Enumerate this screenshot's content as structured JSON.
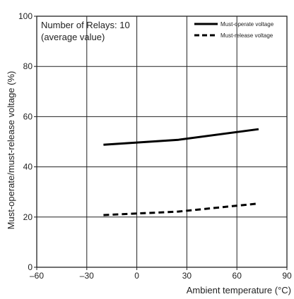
{
  "chart_data": {
    "type": "line",
    "title": "",
    "xlabel": "Ambient temperature (°C)",
    "ylabel": "Must-operate/must-release voltage (%)",
    "xlim": [
      -60,
      90
    ],
    "ylim": [
      0,
      100
    ],
    "x_ticks": [
      -60,
      -30,
      0,
      30,
      60,
      90
    ],
    "y_ticks": [
      0,
      20,
      40,
      60,
      80,
      100
    ],
    "x_tick_labels": [
      "–60",
      "–30",
      "0",
      "30",
      "60",
      "90"
    ],
    "y_tick_labels": [
      "0",
      "20",
      "40",
      "60",
      "80",
      "100"
    ],
    "grid": true,
    "legend_position": "top-right",
    "annotations": [
      "Number of Relays: 10",
      "(average value)"
    ],
    "series": [
      {
        "name": "Must-operate voltage",
        "style": "solid",
        "color": "#000000",
        "x": [
          -20,
          25,
          73
        ],
        "y": [
          48.8,
          50.8,
          55.0
        ]
      },
      {
        "name": "Must-release voltage",
        "style": "dashed",
        "color": "#000000",
        "x": [
          -20,
          25,
          73
        ],
        "y": [
          20.8,
          22.2,
          25.4
        ]
      }
    ]
  }
}
